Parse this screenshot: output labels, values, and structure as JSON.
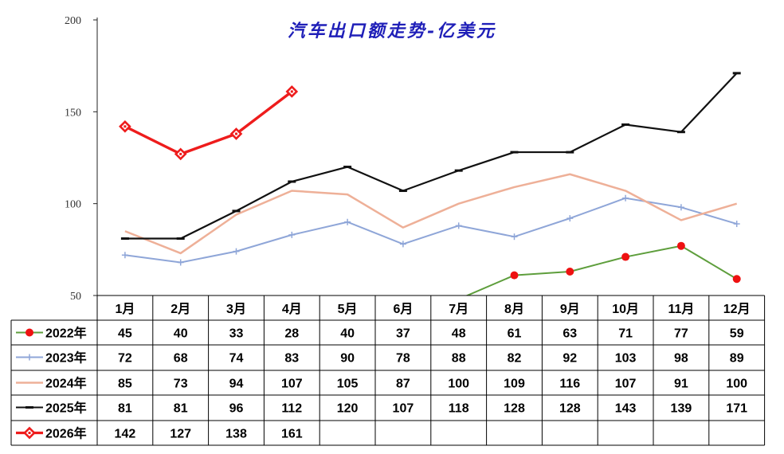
{
  "chart_data": {
    "type": "line",
    "title": "汽车出口额走势-亿美元",
    "ylim": [
      50,
      200
    ],
    "yticks": [
      50,
      100,
      150,
      200
    ],
    "categories": [
      "1月",
      "2月",
      "3月",
      "4月",
      "5月",
      "6月",
      "7月",
      "8月",
      "9月",
      "10月",
      "11月",
      "12月"
    ],
    "series": [
      {
        "name": "2022年",
        "color": "#5e9e3c",
        "marker": "dot",
        "values": [
          45,
          40,
          33,
          28,
          40,
          37,
          48,
          61,
          63,
          71,
          77,
          59
        ]
      },
      {
        "name": "2023年",
        "color": "#8fa6d8",
        "marker": "plus",
        "values": [
          72,
          68,
          74,
          83,
          90,
          78,
          88,
          82,
          92,
          103,
          98,
          89
        ]
      },
      {
        "name": "2024年",
        "color": "#eeb098",
        "marker": "none",
        "values": [
          85,
          73,
          94,
          107,
          105,
          87,
          100,
          109,
          116,
          107,
          91,
          100
        ]
      },
      {
        "name": "2025年",
        "color": "#111111",
        "marker": "dash",
        "values": [
          81,
          81,
          96,
          112,
          120,
          107,
          118,
          128,
          128,
          143,
          139,
          171
        ]
      },
      {
        "name": "2026年",
        "color": "#ee1c1c",
        "marker": "diamond",
        "values": [
          142,
          127,
          138,
          161,
          null,
          null,
          null,
          null,
          null,
          null,
          null,
          null
        ]
      }
    ],
    "legend": "data-table-below",
    "grid": false
  }
}
